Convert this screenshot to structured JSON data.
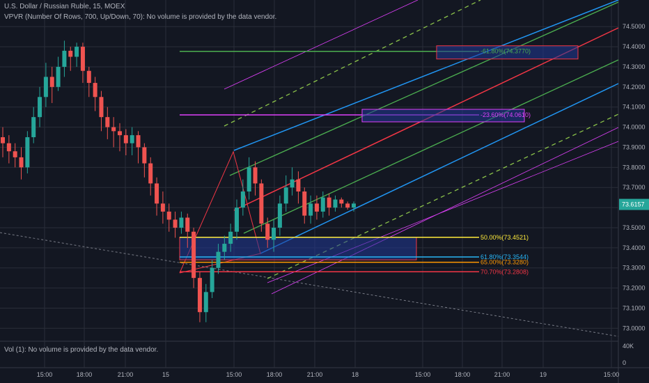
{
  "header": {
    "title": "U.S. Dollar / Russian Ruble, 15, MOEX",
    "vpvr": "VPVR (Number Of Rows, 700, Up/Down, 70): No volume is provided by the data vendor.",
    "vol": "Vol (1): No volume is provided by the data vendor."
  },
  "colors": {
    "background": "#131722",
    "grid": "#2a2e39",
    "up": "#26a69a",
    "down": "#ef5350",
    "last_price": "#26a69a",
    "fib_50": "#ffeb3b",
    "fib_618": "#29b6f6",
    "fib_65": "#ff9800",
    "fib_707": "#f23645",
    "channel_blue": "#2196f3",
    "channel_green": "#4caf50",
    "channel_lime": "#8bc34a",
    "channel_red": "#f23645",
    "channel_magenta": "#e040fb"
  },
  "chart_data": {
    "type": "candlestick",
    "ylim": [
      72.97,
      74.57
    ],
    "y_ticks": [
      "74.5000",
      "74.4000",
      "74.3000",
      "74.2000",
      "74.1000",
      "74.0000",
      "73.9000",
      "73.8000",
      "73.7000",
      "73.6000",
      "73.5000",
      "73.4000",
      "73.3000",
      "73.2000",
      "73.1000",
      "73.0000"
    ],
    "x_ticks": [
      "15:00",
      "18:00",
      "21:00",
      "15",
      "15:00",
      "18:00",
      "21:00",
      "18",
      "15:00",
      "18:00",
      "21:00",
      "19",
      "15:00"
    ],
    "volume_ticks": [
      "40K",
      "0"
    ],
    "last_price": "73.6157",
    "fib_levels": [
      {
        "label": "50.00%(73.4521)",
        "value": 73.4521,
        "color": "#ffeb3b"
      },
      {
        "label": "61.80%(73.3544)",
        "value": 73.3544,
        "color": "#29b6f6"
      },
      {
        "label": "65.00%(73.3280)",
        "value": 73.328,
        "color": "#ff9800"
      },
      {
        "label": "70.70%(73.2808)",
        "value": 73.2808,
        "color": "#f23645"
      }
    ],
    "fib_levels_upper": [
      {
        "label": "-61.80%(74.3770)",
        "value": 74.377,
        "color": "#4caf50"
      },
      {
        "label": "-23.60%(74.0610)",
        "value": 74.061,
        "color": "#e040fb"
      }
    ],
    "candles": [
      [
        73.95,
        73.92,
        74.0,
        73.85
      ],
      [
        73.92,
        73.88,
        73.96,
        73.82
      ],
      [
        73.88,
        73.85,
        73.92,
        73.8
      ],
      [
        73.85,
        73.8,
        73.9,
        73.74
      ],
      [
        73.8,
        73.95,
        73.98,
        73.77
      ],
      [
        73.95,
        74.05,
        74.1,
        73.92
      ],
      [
        74.05,
        74.15,
        74.2,
        74.0
      ],
      [
        74.15,
        74.25,
        74.32,
        74.1
      ],
      [
        74.25,
        74.2,
        74.3,
        74.12
      ],
      [
        74.2,
        74.3,
        74.35,
        74.18
      ],
      [
        74.3,
        74.38,
        74.43,
        74.25
      ],
      [
        74.38,
        74.35,
        74.4,
        74.28
      ],
      [
        74.35,
        74.4,
        74.42,
        74.3
      ],
      [
        74.4,
        74.28,
        74.42,
        74.22
      ],
      [
        74.28,
        74.22,
        74.3,
        74.15
      ],
      [
        74.22,
        74.15,
        74.25,
        74.08
      ],
      [
        74.15,
        74.05,
        74.18,
        73.98
      ],
      [
        74.05,
        74.0,
        74.1,
        73.94
      ],
      [
        74.0,
        73.98,
        74.05,
        73.9
      ],
      [
        73.98,
        73.96,
        74.02,
        73.88
      ],
      [
        73.96,
        73.92,
        73.99,
        73.86
      ],
      [
        73.92,
        73.96,
        74.0,
        73.86
      ],
      [
        73.96,
        73.9,
        73.98,
        73.82
      ],
      [
        73.9,
        73.82,
        73.92,
        73.75
      ],
      [
        73.82,
        73.72,
        73.85,
        73.66
      ],
      [
        73.72,
        73.62,
        73.75,
        73.56
      ],
      [
        73.62,
        73.58,
        73.68,
        73.52
      ],
      [
        73.58,
        73.54,
        73.62,
        73.48
      ],
      [
        73.54,
        73.5,
        73.58,
        73.45
      ],
      [
        73.5,
        73.55,
        73.58,
        73.47
      ],
      [
        73.55,
        73.48,
        73.57,
        73.4
      ],
      [
        73.48,
        73.25,
        73.5,
        73.2
      ],
      [
        73.25,
        73.08,
        73.28,
        73.03
      ],
      [
        73.08,
        73.18,
        73.22,
        73.03
      ],
      [
        73.18,
        73.3,
        73.34,
        73.15
      ],
      [
        73.3,
        73.38,
        73.42,
        73.27
      ],
      [
        73.38,
        73.42,
        73.46,
        73.34
      ],
      [
        73.42,
        73.48,
        73.52,
        73.38
      ],
      [
        73.48,
        73.6,
        73.64,
        73.44
      ],
      [
        73.6,
        73.68,
        73.74,
        73.56
      ],
      [
        73.68,
        73.8,
        73.85,
        73.64
      ],
      [
        73.8,
        73.72,
        73.83,
        73.66
      ],
      [
        73.72,
        73.52,
        73.74,
        73.48
      ],
      [
        73.52,
        73.44,
        73.55,
        73.4
      ],
      [
        73.44,
        73.5,
        73.54,
        73.38
      ],
      [
        73.5,
        73.62,
        73.66,
        73.46
      ],
      [
        73.62,
        73.7,
        73.76,
        73.58
      ],
      [
        73.7,
        73.74,
        73.8,
        73.66
      ],
      [
        73.74,
        73.68,
        73.78,
        73.62
      ],
      [
        73.68,
        73.56,
        73.7,
        73.52
      ],
      [
        73.56,
        73.62,
        73.66,
        73.52
      ],
      [
        73.62,
        73.58,
        73.66,
        73.54
      ],
      [
        73.58,
        73.65,
        73.68,
        73.55
      ],
      [
        73.65,
        73.6,
        73.67,
        73.56
      ],
      [
        73.6,
        73.64,
        73.66,
        73.58
      ],
      [
        73.64,
        73.62,
        73.65,
        73.6
      ],
      [
        73.62,
        73.6,
        73.63,
        73.59
      ],
      [
        73.6,
        73.62,
        73.63,
        73.58
      ]
    ]
  }
}
